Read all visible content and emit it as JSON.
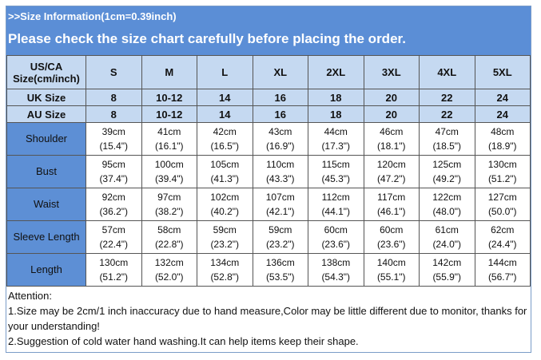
{
  "header": {
    "subtitle": ">>Size Information(1cm=0.39inch)",
    "title": "Please check the size chart carefully before placing the order."
  },
  "table": {
    "corner": [
      "US/CA",
      "Size(cm/inch)"
    ],
    "sizes": [
      "S",
      "M",
      "L",
      "XL",
      "2XL",
      "3XL",
      "4XL",
      "5XL"
    ],
    "conversions": [
      {
        "label": "UK Size",
        "values": [
          "8",
          "10-12",
          "14",
          "16",
          "18",
          "20",
          "22",
          "24"
        ]
      },
      {
        "label": "AU Size",
        "values": [
          "8",
          "10-12",
          "14",
          "16",
          "18",
          "20",
          "22",
          "24"
        ]
      }
    ],
    "measurements": [
      {
        "label": "Shoulder",
        "cm": [
          "39cm",
          "41cm",
          "42cm",
          "43cm",
          "44cm",
          "46cm",
          "47cm",
          "48cm"
        ],
        "inch": [
          "(15.4\")",
          "(16.1\")",
          "(16.5\")",
          "(16.9\")",
          "(17.3\")",
          "(18.1\")",
          "(18.5\")",
          "(18.9\")"
        ]
      },
      {
        "label": "Bust",
        "cm": [
          "95cm",
          "100cm",
          "105cm",
          "110cm",
          "115cm",
          "120cm",
          "125cm",
          "130cm"
        ],
        "inch": [
          "(37.4\")",
          "(39.4\")",
          "(41.3\")",
          "(43.3\")",
          "(45.3\")",
          "(47.2\")",
          "(49.2\")",
          "(51.2\")"
        ]
      },
      {
        "label": "Waist",
        "cm": [
          "92cm",
          "97cm",
          "102cm",
          "107cm",
          "112cm",
          "117cm",
          "122cm",
          "127cm"
        ],
        "inch": [
          "(36.2\")",
          "(38.2\")",
          "(40.2\")",
          "(42.1\")",
          "(44.1\")",
          "(46.1\")",
          "(48.0\")",
          "(50.0\")"
        ]
      },
      {
        "label": "Sleeve Length",
        "cm": [
          "57cm",
          "58cm",
          "59cm",
          "59cm",
          "60cm",
          "60cm",
          "61cm",
          "62cm"
        ],
        "inch": [
          "(22.4\")",
          "(22.8\")",
          "(23.2\")",
          "(23.2\")",
          "(23.6\")",
          "(23.6\")",
          "(24.0\")",
          "(24.4\")"
        ]
      },
      {
        "label": "Length",
        "cm": [
          "130cm",
          "132cm",
          "134cm",
          "136cm",
          "138cm",
          "140cm",
          "142cm",
          "144cm"
        ],
        "inch": [
          "(51.2\")",
          "(52.0\")",
          "(52.8\")",
          "(53.5\")",
          "(54.3\")",
          "(55.1\")",
          "(55.9\")",
          "(56.7\")"
        ]
      }
    ]
  },
  "notes": [
    "Attention:",
    "1.Size may be 2cm/1 inch inaccuracy due to hand measure,Color may be little different due to monitor, thanks for your understanding!",
    "2.Suggestion of cold water hand washing.It can help items keep their shape."
  ]
}
